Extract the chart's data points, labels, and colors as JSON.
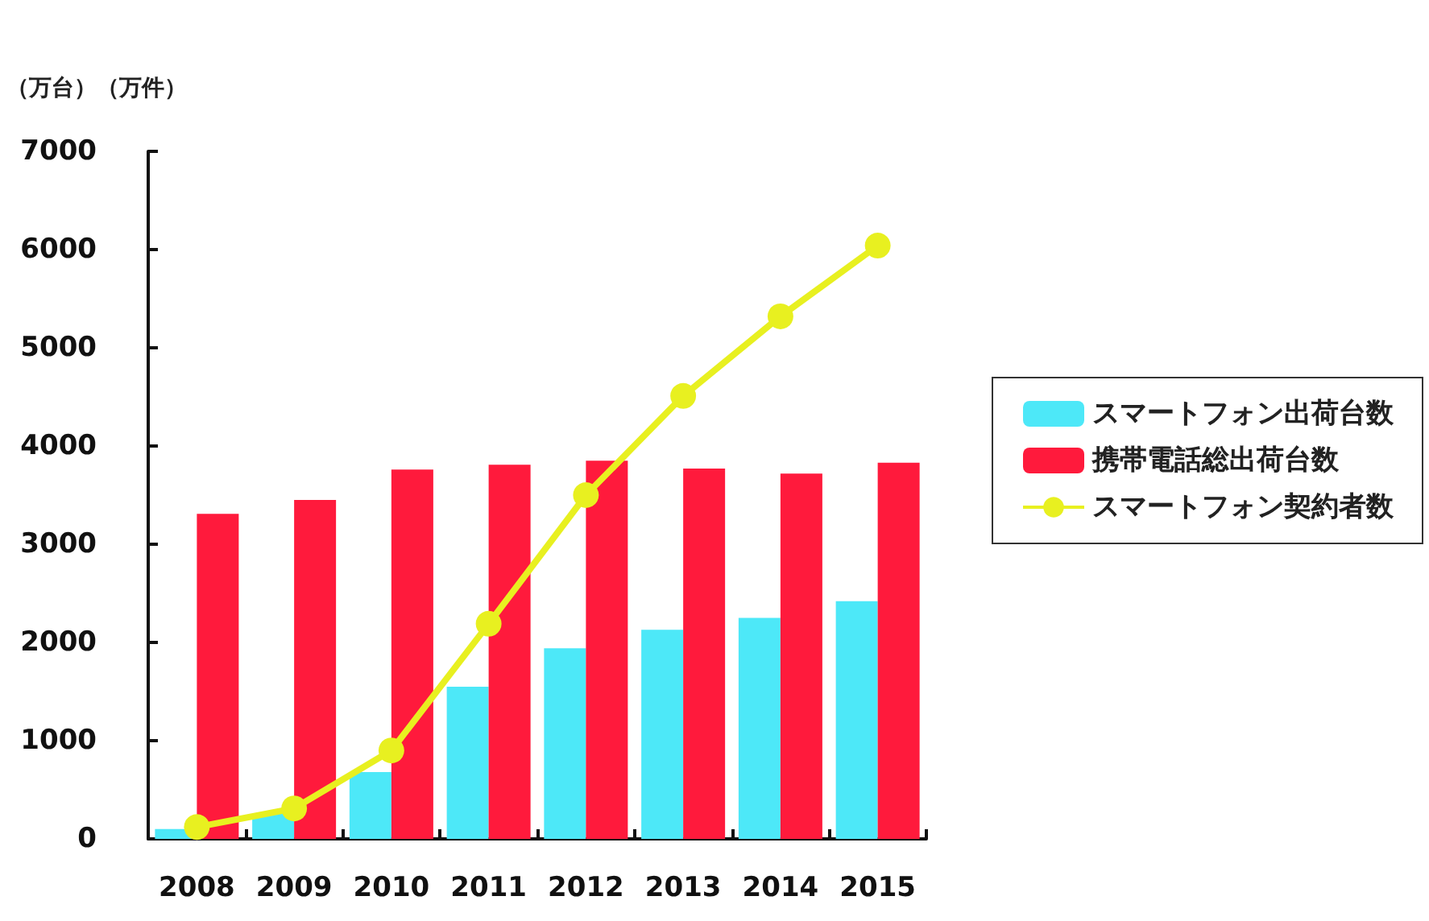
{
  "chart_data": {
    "type": "bar",
    "ylabel": "（万台）（万件）",
    "categories": [
      "2008",
      "2009",
      "2010",
      "2011",
      "2012",
      "2013",
      "2014",
      "2015"
    ],
    "series": [
      {
        "name": "スマートフォン出荷台数",
        "color": "#4de8f8",
        "values": [
          100,
          260,
          680,
          1550,
          1940,
          2130,
          2250,
          2420
        ]
      },
      {
        "name": "携帯電話総出荷台数",
        "color": "#ff1a3c",
        "values": [
          3310,
          3450,
          3760,
          3810,
          3850,
          3770,
          3720,
          3830
        ]
      },
      {
        "name": "スマートフォン契約者数",
        "type": "line",
        "color": "#e8f020",
        "marker": "circle",
        "values": [
          120,
          310,
          900,
          2190,
          3500,
          4510,
          5320,
          6040
        ]
      }
    ],
    "ylim": [
      0,
      7000
    ],
    "yticks": [
      0,
      1000,
      2000,
      3000,
      4000,
      5000,
      6000,
      7000
    ],
    "grid": false,
    "legend": "right"
  }
}
